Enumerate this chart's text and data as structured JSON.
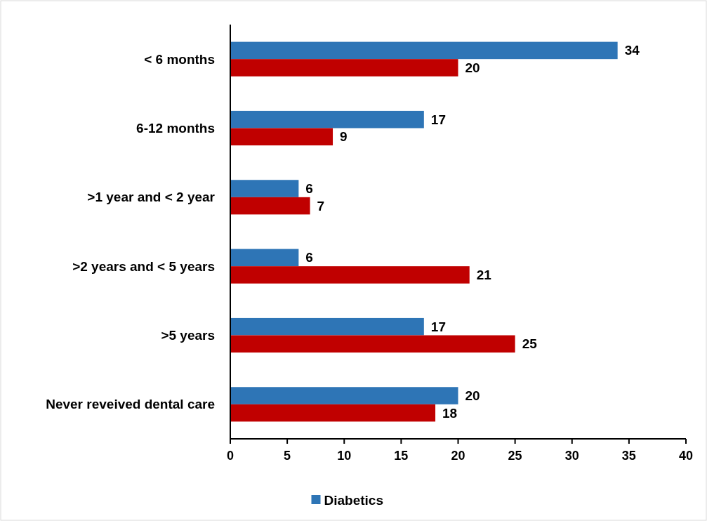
{
  "chart_data": {
    "type": "bar",
    "orientation": "horizontal",
    "categories": [
      "< 6 months",
      "6-12 months",
      ">1 year and < 2 year",
      ">2 years and < 5 years",
      ">5 years",
      "Never reveived dental care"
    ],
    "series": [
      {
        "name": "Diabetics",
        "color": "#2e75b6",
        "values": [
          34,
          17,
          6,
          6,
          17,
          20
        ]
      },
      {
        "color": "#c00000",
        "values": [
          20,
          9,
          7,
          21,
          25,
          18
        ]
      }
    ],
    "xlim": [
      0,
      40
    ],
    "xticks": [
      0,
      5,
      10,
      15,
      20,
      25,
      30,
      35,
      40
    ],
    "data_labels": true,
    "legend": "bottom",
    "grid": false
  }
}
